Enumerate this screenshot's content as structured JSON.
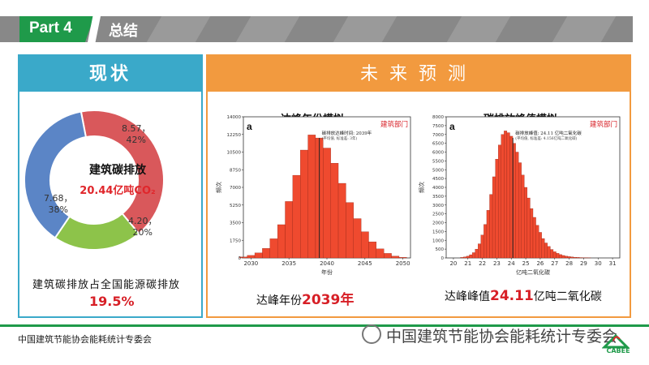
{
  "header": {
    "part_label": "Part 4",
    "title": "总结"
  },
  "left_panel": {
    "heading": "现状",
    "donut": {
      "center_title": "建筑碳排放",
      "center_value": "20.44亿吨CO₂",
      "segments": [
        {
          "value_label": "8.57，",
          "pct_label": "42%",
          "value": 8.57,
          "pct": 42,
          "color": "#d9585b"
        },
        {
          "value_label": "4.20，",
          "pct_label": "20%",
          "value": 4.2,
          "pct": 20,
          "color": "#8dc34a"
        },
        {
          "value_label": "7.68，",
          "pct_label": "38%",
          "value": 7.68,
          "pct": 38,
          "color": "#5b85c6"
        }
      ]
    },
    "share_text": "建筑碳排放占全国能源碳排放",
    "share_value": "19.5%"
  },
  "right_panel": {
    "heading": "未来预测",
    "chart1": {
      "title": "达峰年份模拟",
      "panel_letter": "a",
      "legend": "建筑部门",
      "annotation": "碳排放达峰时间: 2039年",
      "annotation_sub": "(平均值, 标准差: 3年)",
      "ylabel": "频次",
      "xlabel": "年份",
      "caption_prefix": "达峰年份",
      "caption_value": "2039年"
    },
    "chart2": {
      "title": "碳排放峰值模拟",
      "panel_letter": "a",
      "legend": "建筑部门",
      "annotation": "碳排放峰值: 24.11 亿吨二氧化碳",
      "annotation_sub": "(平均值, 标准差: 4.156亿吨二氧化碳)",
      "ylabel": "频次",
      "xlabel": "亿吨二氧化碳",
      "caption_prefix": "达峰峰值",
      "caption_value": "24.11",
      "caption_suffix": "亿吨二氧化碳"
    }
  },
  "footer": {
    "left_text": "中国建筑节能协会能耗统计专委会",
    "right_text": "中国建筑节能协会能耗统计专委会",
    "logo_text": "CABEE"
  },
  "colors": {
    "green": "#1f9a4a",
    "teal": "#3aa9c9",
    "orange": "#f29a3f",
    "bar": "#ef4a2f",
    "red_text": "#d71f26"
  },
  "chart_data": [
    {
      "type": "bar",
      "title": "达峰年份模拟",
      "xlabel": "年份",
      "ylabel": "频次",
      "xlim": [
        2029,
        2051
      ],
      "ylim": [
        0,
        14000
      ],
      "x_ticks": [
        2030,
        2035,
        2040,
        2045,
        2050
      ],
      "y_ticks": [
        0,
        1750,
        3500,
        5250,
        7000,
        8750,
        10500,
        12250,
        14000
      ],
      "y_tick_labels": [
        "0",
        "1750",
        "3500",
        "5250",
        "7000",
        "8750",
        "10500",
        "12250",
        "14000"
      ],
      "bin_width": 1,
      "x": [
        2029,
        2030,
        2031,
        2032,
        2033,
        2034,
        2035,
        2036,
        2037,
        2038,
        2039,
        2040,
        2041,
        2042,
        2043,
        2044,
        2045,
        2046,
        2047,
        2048,
        2049,
        2050
      ],
      "values": [
        100,
        250,
        500,
        950,
        1900,
        3300,
        5600,
        8200,
        10700,
        12200,
        11900,
        10900,
        9400,
        7400,
        5500,
        3900,
        2600,
        1600,
        900,
        450,
        180,
        60
      ],
      "marker_x": 2039
    },
    {
      "type": "bar",
      "title": "碳排放峰值模拟",
      "xlabel": "亿吨二氧化碳",
      "ylabel": "频次",
      "xlim": [
        19.5,
        31.5
      ],
      "ylim": [
        0,
        8000
      ],
      "x_ticks": [
        20,
        21,
        22,
        23,
        24,
        25,
        26,
        27,
        28,
        29,
        30,
        31
      ],
      "y_ticks": [
        0,
        500,
        1000,
        1500,
        2000,
        2500,
        3000,
        3500,
        4000,
        4500,
        5000,
        5500,
        6000,
        6500,
        7000,
        7500,
        8000
      ],
      "y_tick_labels": [
        "0",
        "500",
        "1000",
        "1500",
        "2000",
        "2500",
        "3000",
        "3500",
        "4000",
        "4500",
        "5000",
        "5500",
        "6000",
        "6500",
        "7000",
        "7500",
        "8000"
      ],
      "bin_width": 0.2,
      "x": [
        20.6,
        20.8,
        21.0,
        21.2,
        21.4,
        21.6,
        21.8,
        22.0,
        22.2,
        22.4,
        22.6,
        22.8,
        23.0,
        23.2,
        23.4,
        23.6,
        23.8,
        24.0,
        24.2,
        24.4,
        24.6,
        24.8,
        25.0,
        25.2,
        25.4,
        25.6,
        25.8,
        26.0,
        26.2,
        26.4,
        26.6,
        26.8,
        27.0,
        27.2,
        27.4,
        27.6,
        27.8,
        28.0,
        28.2,
        28.4,
        28.6,
        28.8,
        29.0,
        29.2,
        29.4
      ],
      "values": [
        30,
        60,
        100,
        180,
        300,
        500,
        800,
        1300,
        1900,
        2700,
        3600,
        4600,
        5600,
        6400,
        7000,
        7200,
        7100,
        6900,
        6500,
        6000,
        5400,
        4700,
        4000,
        3400,
        2800,
        2300,
        1850,
        1450,
        1100,
        850,
        650,
        480,
        350,
        260,
        190,
        140,
        100,
        75,
        55,
        40,
        30,
        20,
        15,
        10,
        6
      ],
      "marker_x": 24.11
    }
  ]
}
